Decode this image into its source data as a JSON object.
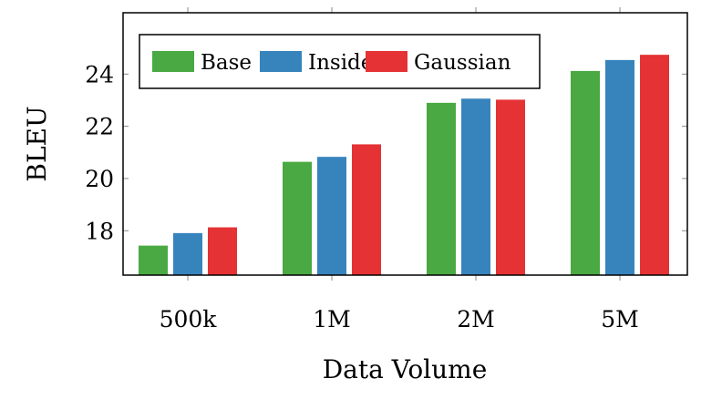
{
  "chart_data": {
    "type": "bar",
    "title": "",
    "xlabel": "Data Volume",
    "ylabel": "BLEU",
    "categories": [
      "500k",
      "1M",
      "2M",
      "5M"
    ],
    "series": [
      {
        "name": "Base",
        "color": "#4aa942",
        "values": [
          17.43,
          20.64,
          22.9,
          24.12
        ]
      },
      {
        "name": "Inside",
        "color": "#3784bd",
        "values": [
          17.91,
          20.83,
          23.06,
          24.54
        ]
      },
      {
        "name": "Gaussian",
        "color": "#e53234",
        "values": [
          18.13,
          21.31,
          23.02,
          24.74
        ]
      }
    ],
    "ylim": [
      16.3,
      26.35
    ],
    "yticks": [
      18,
      20,
      22,
      24
    ],
    "ytick_labels": [
      "18",
      "20",
      "22",
      "24"
    ],
    "grid": false,
    "legend_position": "top-left"
  }
}
